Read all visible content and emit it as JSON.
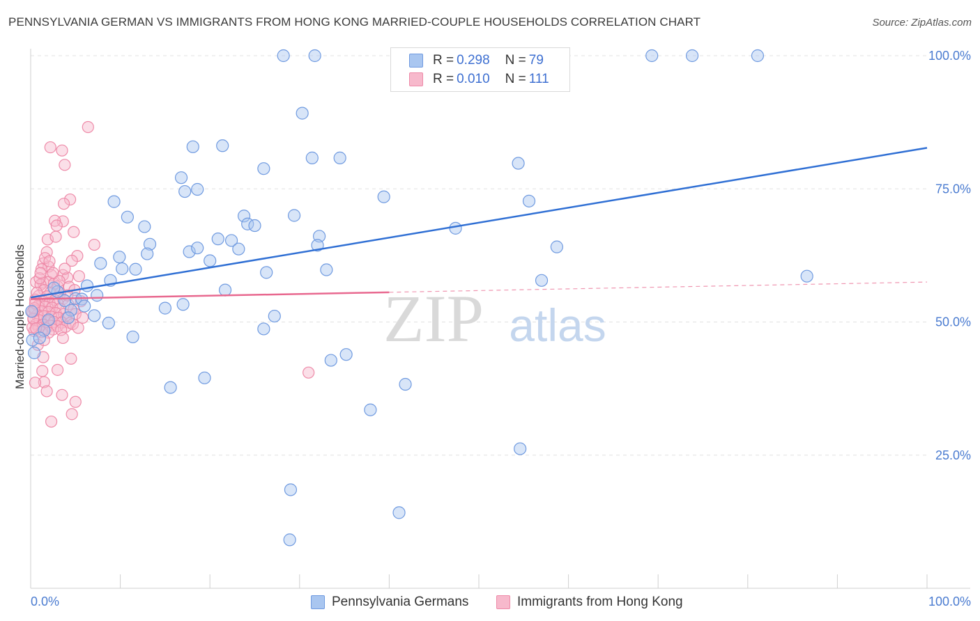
{
  "title": "PENNSYLVANIA GERMAN VS IMMIGRANTS FROM HONG KONG MARRIED-COUPLE HOUSEHOLDS CORRELATION CHART",
  "source": "Source: ZipAtlas.com",
  "watermark": {
    "zip": "ZIP",
    "atlas": "atlas"
  },
  "legend": {
    "rows": [
      {
        "r_label": "R = ",
        "r_value": "0.298",
        "n_label": "N = ",
        "n_value": "79"
      },
      {
        "r_label": "R = ",
        "r_value": "0.010",
        "n_label": "N = ",
        "n_value": "111"
      }
    ]
  },
  "bottom_legend": {
    "series1": "Pennsylvania Germans",
    "series2": "Immigrants from Hong Kong"
  },
  "colors": {
    "blue_fill": "#a9c6f0",
    "blue_stroke": "#6f9ae0",
    "blue_line": "#2f6fd4",
    "pink_fill": "#f7b9cc",
    "pink_stroke": "#ee8aa8",
    "pink_line": "#e8688f",
    "axis_text": "#4a7bd0",
    "grid": "#e0e0e0"
  },
  "chart_data": {
    "type": "scatter",
    "title": "PENNSYLVANIA GERMAN VS IMMIGRANTS FROM HONG KONG MARRIED-COUPLE HOUSEHOLDS CORRELATION CHART",
    "xlabel": "",
    "ylabel": "Married-couple Households",
    "xlim": [
      0,
      100
    ],
    "ylim": [
      0,
      102
    ],
    "x_tick_labels": [
      "0.0%",
      "100.0%"
    ],
    "y_ticks": [
      25,
      50,
      75,
      100
    ],
    "y_tick_labels": [
      "25.0%",
      "50.0%",
      "75.0%",
      "100.0%"
    ],
    "series": [
      {
        "name": "Pennsylvania Germans",
        "R": 0.298,
        "N": 79,
        "trend": {
          "x0": 0,
          "y0": 54.6,
          "x1": 100,
          "y1": 82.7,
          "solid_until": 100
        },
        "points": [
          [
            28.2,
            100
          ],
          [
            31.7,
            100
          ],
          [
            69.3,
            100
          ],
          [
            73.8,
            100
          ],
          [
            81.1,
            100
          ],
          [
            30.3,
            89.2
          ],
          [
            18.1,
            82.9
          ],
          [
            21.4,
            83.1
          ],
          [
            31.4,
            80.8
          ],
          [
            34.5,
            80.8
          ],
          [
            26.0,
            78.8
          ],
          [
            54.4,
            79.8
          ],
          [
            17.2,
            74.5
          ],
          [
            18.6,
            74.9
          ],
          [
            16.8,
            77.1
          ],
          [
            39.4,
            73.5
          ],
          [
            55.6,
            72.7
          ],
          [
            9.3,
            72.6
          ],
          [
            10.8,
            69.7
          ],
          [
            12.7,
            67.9
          ],
          [
            23.8,
            69.9
          ],
          [
            29.4,
            70.0
          ],
          [
            24.2,
            68.4
          ],
          [
            25.0,
            68.1
          ],
          [
            47.4,
            67.6
          ],
          [
            32.2,
            66.1
          ],
          [
            20.9,
            65.6
          ],
          [
            22.4,
            65.3
          ],
          [
            13.3,
            64.6
          ],
          [
            17.7,
            63.2
          ],
          [
            32.0,
            64.4
          ],
          [
            13.0,
            62.8
          ],
          [
            18.6,
            63.9
          ],
          [
            58.7,
            64.1
          ],
          [
            23.2,
            63.7
          ],
          [
            9.9,
            62.2
          ],
          [
            7.8,
            61.0
          ],
          [
            20.0,
            61.5
          ],
          [
            10.2,
            60.0
          ],
          [
            11.7,
            59.9
          ],
          [
            33.0,
            59.8
          ],
          [
            26.3,
            59.3
          ],
          [
            8.9,
            57.8
          ],
          [
            57.0,
            57.8
          ],
          [
            86.6,
            58.6
          ],
          [
            6.3,
            56.8
          ],
          [
            21.7,
            56.0
          ],
          [
            7.4,
            55.0
          ],
          [
            5.0,
            54.4
          ],
          [
            5.7,
            54.3
          ],
          [
            3.8,
            54.0
          ],
          [
            4.5,
            52.2
          ],
          [
            15.0,
            52.6
          ],
          [
            17.0,
            53.3
          ],
          [
            7.1,
            51.2
          ],
          [
            27.2,
            51.1
          ],
          [
            8.7,
            49.8
          ],
          [
            26.0,
            48.7
          ],
          [
            11.4,
            47.2
          ],
          [
            0.2,
            46.6
          ],
          [
            0.4,
            44.2
          ],
          [
            35.2,
            43.9
          ],
          [
            33.5,
            42.8
          ],
          [
            19.4,
            39.5
          ],
          [
            15.6,
            37.7
          ],
          [
            41.8,
            38.3
          ],
          [
            37.9,
            33.5
          ],
          [
            54.6,
            26.2
          ],
          [
            29.0,
            18.5
          ],
          [
            41.1,
            14.2
          ],
          [
            28.9,
            9.1
          ],
          [
            0.1,
            52.0
          ],
          [
            2.0,
            50.4
          ],
          [
            1.5,
            48.4
          ],
          [
            3.0,
            55.7
          ],
          [
            6.0,
            53.0
          ],
          [
            4.2,
            50.8
          ],
          [
            2.6,
            56.4
          ],
          [
            1.0,
            47.0
          ]
        ]
      },
      {
        "name": "Immigrants from Hong Kong",
        "R": 0.01,
        "N": 111,
        "trend": {
          "x0": 0,
          "y0": 54.3,
          "x1": 100,
          "y1": 57.5,
          "solid_until": 40
        },
        "points": [
          [
            6.4,
            86.6
          ],
          [
            2.2,
            82.8
          ],
          [
            3.5,
            82.2
          ],
          [
            3.8,
            79.5
          ],
          [
            4.4,
            73.0
          ],
          [
            3.7,
            72.2
          ],
          [
            3.6,
            68.9
          ],
          [
            2.7,
            69.0
          ],
          [
            1.9,
            65.5
          ],
          [
            2.9,
            68.1
          ],
          [
            4.8,
            66.9
          ],
          [
            7.1,
            64.5
          ],
          [
            1.8,
            63.1
          ],
          [
            5.2,
            62.4
          ],
          [
            4.6,
            61.5
          ],
          [
            1.4,
            61.0
          ],
          [
            2.0,
            60.4
          ],
          [
            1.2,
            59.9
          ],
          [
            2.3,
            58.8
          ],
          [
            3.6,
            58.8
          ],
          [
            4.1,
            58.3
          ],
          [
            1.4,
            57.4
          ],
          [
            2.0,
            57.5
          ],
          [
            2.6,
            57.2
          ],
          [
            0.6,
            57.5
          ],
          [
            1.1,
            57.0
          ],
          [
            3.0,
            56.7
          ],
          [
            4.3,
            56.6
          ],
          [
            1.5,
            56.0
          ],
          [
            2.2,
            55.5
          ],
          [
            3.3,
            55.4
          ],
          [
            0.9,
            54.9
          ],
          [
            1.8,
            54.8
          ],
          [
            2.7,
            54.1
          ],
          [
            3.6,
            54.3
          ],
          [
            0.5,
            54.2
          ],
          [
            1.3,
            53.8
          ],
          [
            2.1,
            53.6
          ],
          [
            3.0,
            53.5
          ],
          [
            4.2,
            53.3
          ],
          [
            0.8,
            53.0
          ],
          [
            1.6,
            52.9
          ],
          [
            2.4,
            52.7
          ],
          [
            3.3,
            52.5
          ],
          [
            4.8,
            52.4
          ],
          [
            0.4,
            52.2
          ],
          [
            1.2,
            52.0
          ],
          [
            2.0,
            51.9
          ],
          [
            2.8,
            51.7
          ],
          [
            3.7,
            51.5
          ],
          [
            5.0,
            51.5
          ],
          [
            0.7,
            51.3
          ],
          [
            1.5,
            51.1
          ],
          [
            2.3,
            51.0
          ],
          [
            3.1,
            50.8
          ],
          [
            4.0,
            50.7
          ],
          [
            0.3,
            50.5
          ],
          [
            1.0,
            50.3
          ],
          [
            1.9,
            50.2
          ],
          [
            2.6,
            50.0
          ],
          [
            3.5,
            49.9
          ],
          [
            4.4,
            49.8
          ],
          [
            0.6,
            49.6
          ],
          [
            1.4,
            49.5
          ],
          [
            2.2,
            49.3
          ],
          [
            3.0,
            49.2
          ],
          [
            3.9,
            49.1
          ],
          [
            0.9,
            48.9
          ],
          [
            1.7,
            48.8
          ],
          [
            2.5,
            48.6
          ],
          [
            3.4,
            48.5
          ],
          [
            0.4,
            48.3
          ],
          [
            1.2,
            48.1
          ],
          [
            2.0,
            48.0
          ],
          [
            3.6,
            47.0
          ],
          [
            0.8,
            45.7
          ],
          [
            1.5,
            46.6
          ],
          [
            4.5,
            43.1
          ],
          [
            1.4,
            43.4
          ],
          [
            3.0,
            41.0
          ],
          [
            1.3,
            40.8
          ],
          [
            31.0,
            40.5
          ],
          [
            1.5,
            38.7
          ],
          [
            0.5,
            38.6
          ],
          [
            1.8,
            37.0
          ],
          [
            3.5,
            36.3
          ],
          [
            5.0,
            35.0
          ],
          [
            4.6,
            32.7
          ],
          [
            2.3,
            31.3
          ],
          [
            1.0,
            58.2
          ],
          [
            2.5,
            59.2
          ],
          [
            3.8,
            60.0
          ],
          [
            5.4,
            58.6
          ],
          [
            4.9,
            56.0
          ],
          [
            5.6,
            53.9
          ],
          [
            5.8,
            50.8
          ],
          [
            4.7,
            49.6
          ],
          [
            5.3,
            48.9
          ],
          [
            1.6,
            62.0
          ],
          [
            2.1,
            61.4
          ],
          [
            2.8,
            66.0
          ],
          [
            0.2,
            49.0
          ],
          [
            0.3,
            50.7
          ],
          [
            0.4,
            52.6
          ],
          [
            0.5,
            53.5
          ],
          [
            0.2,
            51.9
          ],
          [
            0.6,
            48.8
          ],
          [
            0.7,
            55.5
          ],
          [
            1.1,
            59.2
          ],
          [
            3.2,
            57.7
          ],
          [
            4.1,
            55.0
          ]
        ]
      }
    ]
  }
}
